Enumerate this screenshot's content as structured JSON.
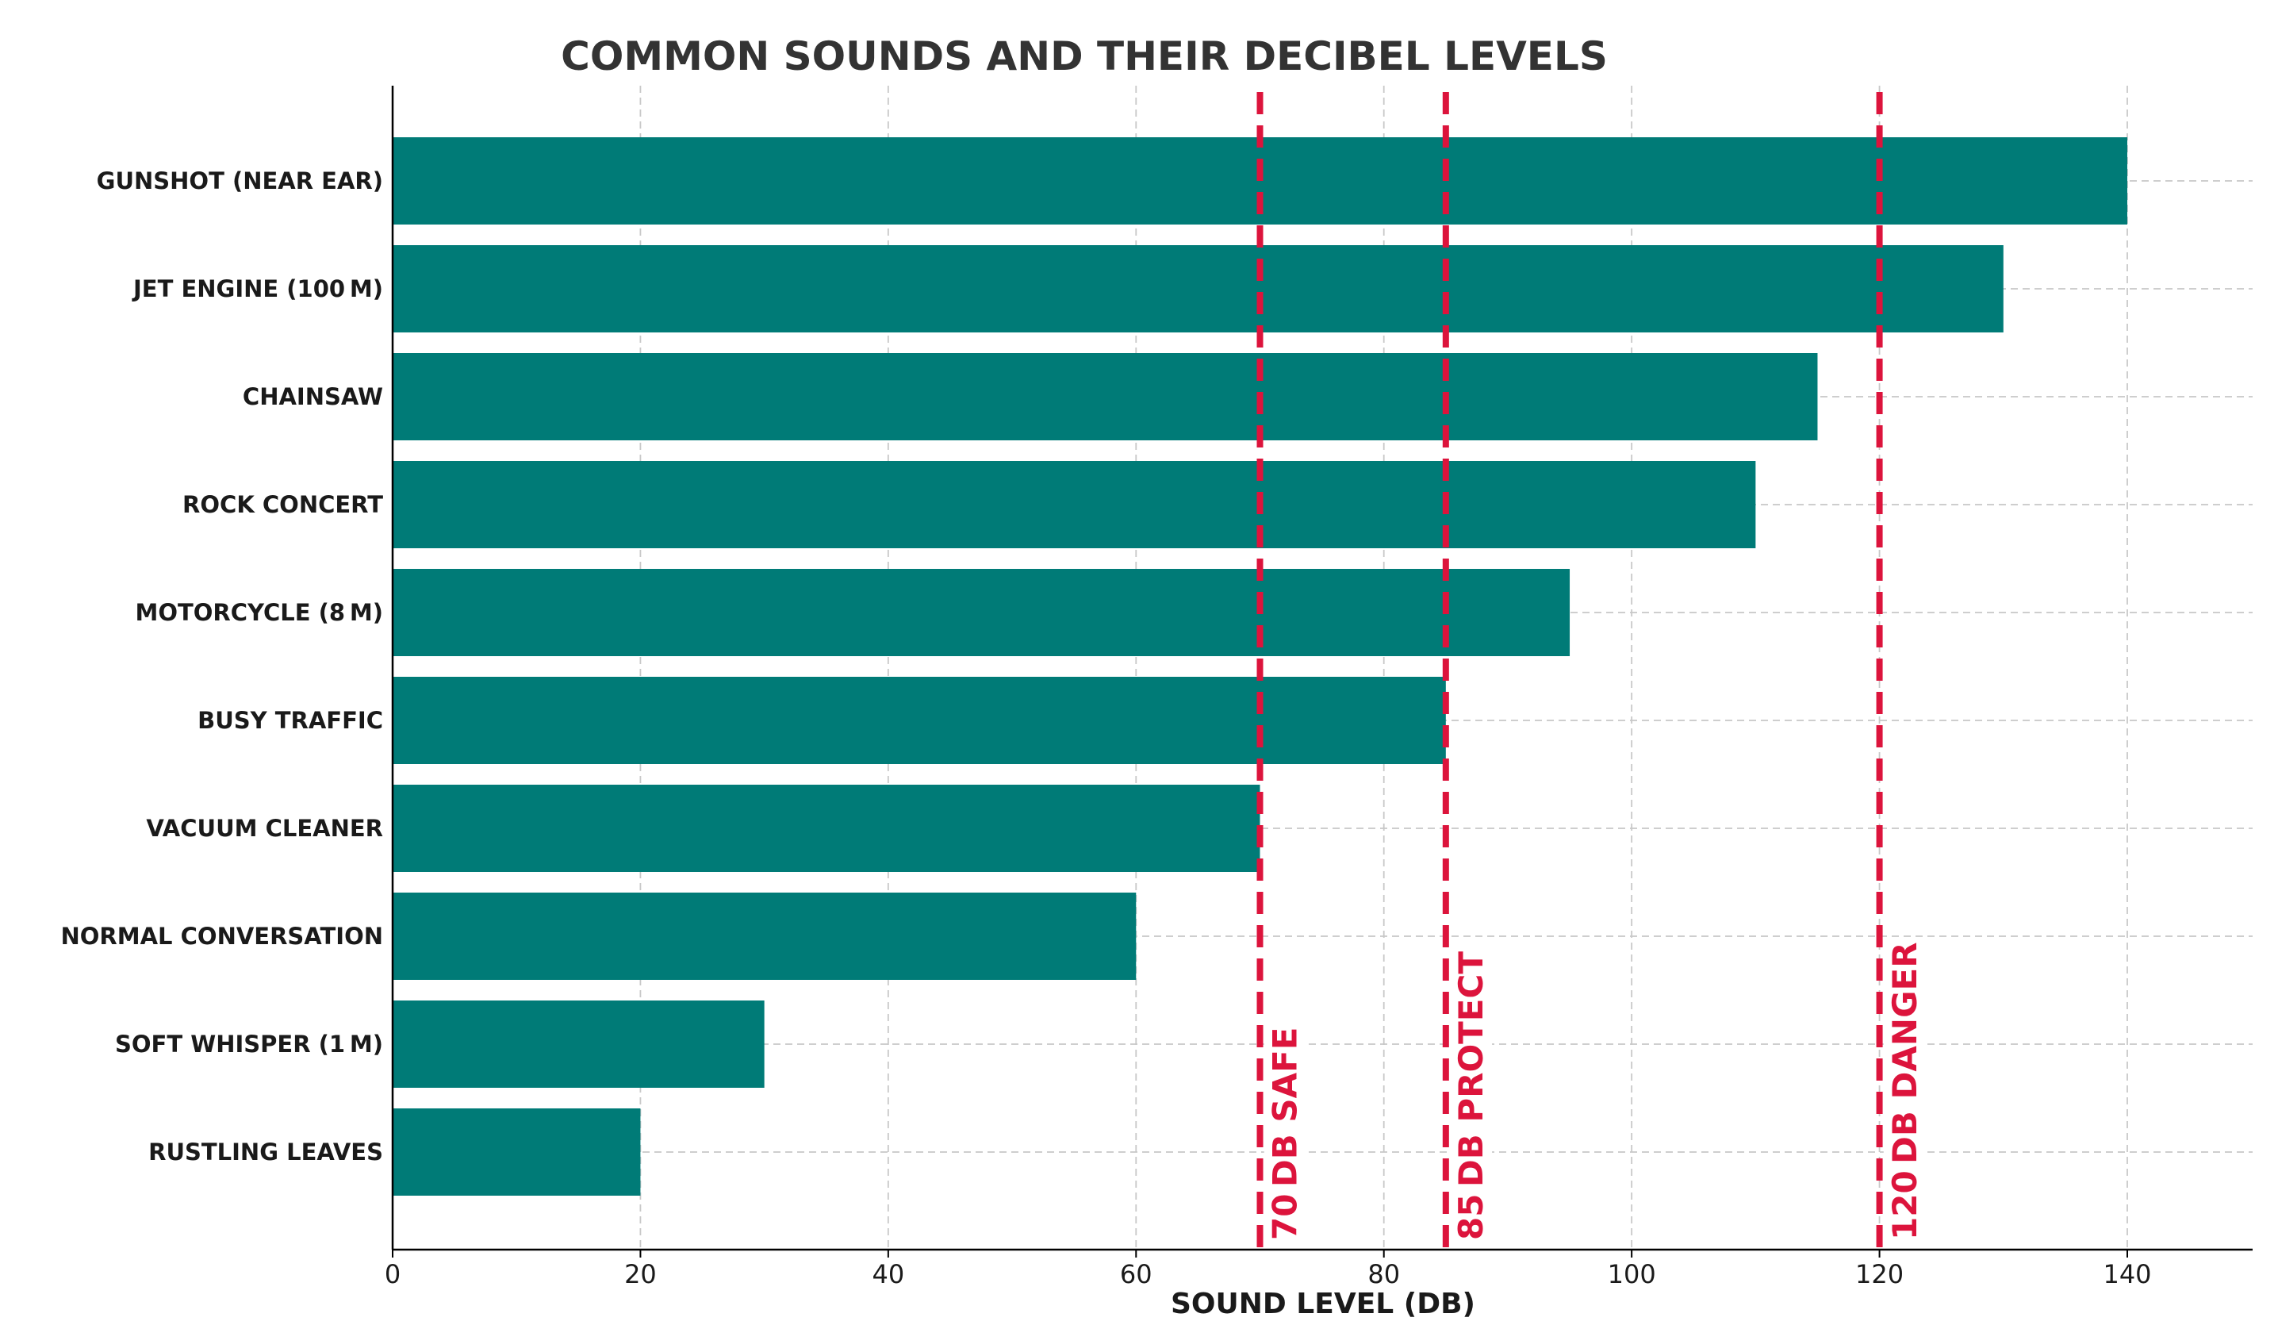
{
  "chart_data": {
    "type": "bar",
    "orientation": "horizontal",
    "title": "COMMON SOUNDS AND THEIR DECIBEL LEVELS",
    "xlabel": "SOUND LEVEL (DB)",
    "ylabel": "",
    "categories": [
      "GUNSHOT (NEAR EAR)",
      "JET ENGINE (100 M)",
      "CHAINSAW",
      "ROCK CONCERT",
      "MOTORCYCLE (8 M)",
      "BUSY TRAFFIC",
      "VACUUM CLEANER",
      "NORMAL CONVERSATION",
      "SOFT WHISPER (1 M)",
      "RUSTLING LEAVES"
    ],
    "values": [
      140,
      130,
      115,
      110,
      95,
      85,
      70,
      60,
      30,
      20
    ],
    "xlim": [
      0,
      150
    ],
    "xticks": [
      0,
      20,
      40,
      60,
      80,
      100,
      120,
      140
    ],
    "grid": true,
    "bar_color": "#007b77",
    "reference_lines": [
      {
        "value": 70,
        "label": "70 DB SAFE",
        "color": "#dc143c"
      },
      {
        "value": 85,
        "label": "85 DB PROTECT",
        "color": "#dc143c"
      },
      {
        "value": 120,
        "label": "120 DB DANGER",
        "color": "#dc143c"
      }
    ]
  }
}
